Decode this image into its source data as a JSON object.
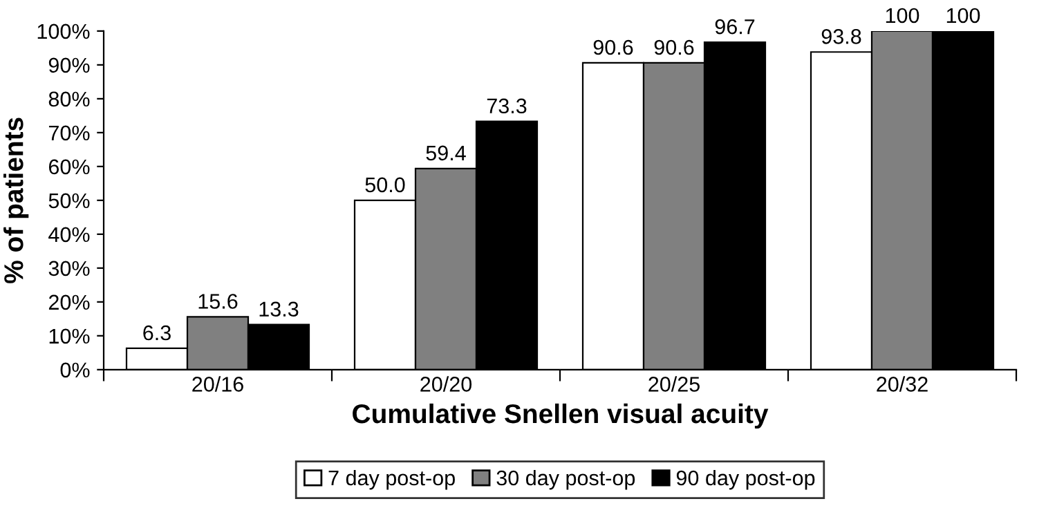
{
  "chart_data": {
    "type": "bar",
    "xlabel": "Cumulative Snellen visual acuity",
    "ylabel": "% of patients",
    "categories": [
      "20/16",
      "20/20",
      "20/25",
      "20/32"
    ],
    "series": [
      {
        "name": "7 day post-op",
        "color": "#ffffff",
        "values": [
          6.3,
          50.0,
          90.6,
          93.8
        ],
        "value_labels": [
          "6.3",
          "50.0",
          "90.6",
          "93.8"
        ]
      },
      {
        "name": "30 day post-op",
        "color": "#808080",
        "values": [
          15.6,
          59.4,
          90.6,
          100
        ],
        "value_labels": [
          "15.6",
          "59.4",
          "90.6",
          "100"
        ]
      },
      {
        "name": "90 day post-op",
        "color": "#000000",
        "values": [
          13.3,
          73.3,
          96.7,
          100
        ],
        "value_labels": [
          "13.3",
          "73.3",
          "96.7",
          "100"
        ]
      }
    ],
    "ylim": [
      0,
      100
    ],
    "yticks": [
      {
        "value": 0,
        "label": "0%"
      },
      {
        "value": 10,
        "label": "10%"
      },
      {
        "value": 20,
        "label": "20%"
      },
      {
        "value": 30,
        "label": "30%"
      },
      {
        "value": 40,
        "label": "40%"
      },
      {
        "value": 50,
        "label": "50%"
      },
      {
        "value": 60,
        "label": "60%"
      },
      {
        "value": 70,
        "label": "70%"
      },
      {
        "value": 80,
        "label": "80%"
      },
      {
        "value": 90,
        "label": "90%"
      },
      {
        "value": 100,
        "label": "100%"
      }
    ],
    "grid": false,
    "legend": "bottom"
  }
}
